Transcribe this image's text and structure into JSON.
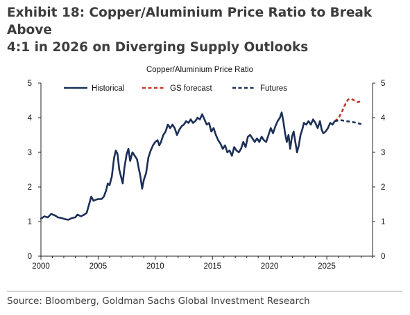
{
  "exhibit": {
    "title_line1": "Exhibit 18: Copper/Aluminium Price Ratio to Break Above",
    "title_line2": "4:1 in 2026 on Diverging Supply Outlooks",
    "source": "Source: Bloomberg, Goldman Sachs Global Investment Research"
  },
  "chart_data": {
    "type": "line",
    "title": "Copper/Aluminium Price Ratio",
    "xlim": [
      2000,
      2029
    ],
    "ylim": [
      0,
      5
    ],
    "xticks": [
      2000,
      2005,
      2010,
      2015,
      2020,
      2025
    ],
    "yticks": [
      0,
      1,
      2,
      3,
      4,
      5
    ],
    "legend_position": "top",
    "grid": false,
    "series": [
      {
        "name": "Historical",
        "color": "#1b2f57",
        "style": "solid",
        "points": [
          [
            2000.0,
            1.08
          ],
          [
            2000.3,
            1.15
          ],
          [
            2000.6,
            1.12
          ],
          [
            2000.9,
            1.22
          ],
          [
            2001.2,
            1.18
          ],
          [
            2001.5,
            1.12
          ],
          [
            2001.8,
            1.1
          ],
          [
            2002.1,
            1.07
          ],
          [
            2002.4,
            1.05
          ],
          [
            2002.7,
            1.1
          ],
          [
            2003.0,
            1.12
          ],
          [
            2003.2,
            1.2
          ],
          [
            2003.5,
            1.15
          ],
          [
            2003.8,
            1.2
          ],
          [
            2004.0,
            1.25
          ],
          [
            2004.2,
            1.48
          ],
          [
            2004.4,
            1.72
          ],
          [
            2004.6,
            1.6
          ],
          [
            2004.8,
            1.63
          ],
          [
            2005.0,
            1.65
          ],
          [
            2005.3,
            1.65
          ],
          [
            2005.5,
            1.72
          ],
          [
            2005.7,
            1.9
          ],
          [
            2005.85,
            2.1
          ],
          [
            2006.0,
            2.05
          ],
          [
            2006.2,
            2.3
          ],
          [
            2006.4,
            2.85
          ],
          [
            2006.55,
            3.05
          ],
          [
            2006.7,
            2.95
          ],
          [
            2006.85,
            2.5
          ],
          [
            2007.0,
            2.3
          ],
          [
            2007.15,
            2.1
          ],
          [
            2007.3,
            2.55
          ],
          [
            2007.5,
            2.95
          ],
          [
            2007.65,
            3.1
          ],
          [
            2007.8,
            2.75
          ],
          [
            2008.0,
            3.0
          ],
          [
            2008.2,
            2.9
          ],
          [
            2008.4,
            2.8
          ],
          [
            2008.55,
            2.55
          ],
          [
            2008.7,
            2.3
          ],
          [
            2008.85,
            1.95
          ],
          [
            2009.0,
            2.2
          ],
          [
            2009.2,
            2.4
          ],
          [
            2009.4,
            2.85
          ],
          [
            2009.6,
            3.05
          ],
          [
            2009.8,
            3.2
          ],
          [
            2010.0,
            3.3
          ],
          [
            2010.2,
            3.35
          ],
          [
            2010.35,
            3.2
          ],
          [
            2010.5,
            3.3
          ],
          [
            2010.7,
            3.5
          ],
          [
            2010.9,
            3.6
          ],
          [
            2011.1,
            3.8
          ],
          [
            2011.3,
            3.7
          ],
          [
            2011.5,
            3.8
          ],
          [
            2011.7,
            3.7
          ],
          [
            2011.9,
            3.5
          ],
          [
            2012.1,
            3.65
          ],
          [
            2012.3,
            3.75
          ],
          [
            2012.5,
            3.8
          ],
          [
            2012.7,
            3.9
          ],
          [
            2012.9,
            3.85
          ],
          [
            2013.1,
            3.95
          ],
          [
            2013.3,
            3.85
          ],
          [
            2013.5,
            3.9
          ],
          [
            2013.7,
            4.0
          ],
          [
            2013.9,
            3.95
          ],
          [
            2014.1,
            4.1
          ],
          [
            2014.3,
            3.95
          ],
          [
            2014.5,
            3.8
          ],
          [
            2014.7,
            3.85
          ],
          [
            2014.9,
            3.6
          ],
          [
            2015.1,
            3.7
          ],
          [
            2015.3,
            3.5
          ],
          [
            2015.5,
            3.35
          ],
          [
            2015.7,
            3.25
          ],
          [
            2015.9,
            3.1
          ],
          [
            2016.1,
            3.2
          ],
          [
            2016.3,
            3.0
          ],
          [
            2016.5,
            3.05
          ],
          [
            2016.7,
            2.9
          ],
          [
            2016.9,
            3.15
          ],
          [
            2017.1,
            3.05
          ],
          [
            2017.3,
            3.0
          ],
          [
            2017.5,
            3.1
          ],
          [
            2017.7,
            3.3
          ],
          [
            2017.9,
            3.15
          ],
          [
            2018.1,
            3.45
          ],
          [
            2018.3,
            3.5
          ],
          [
            2018.5,
            3.4
          ],
          [
            2018.7,
            3.3
          ],
          [
            2018.9,
            3.4
          ],
          [
            2019.1,
            3.3
          ],
          [
            2019.3,
            3.45
          ],
          [
            2019.5,
            3.35
          ],
          [
            2019.7,
            3.3
          ],
          [
            2019.9,
            3.5
          ],
          [
            2020.1,
            3.7
          ],
          [
            2020.3,
            3.55
          ],
          [
            2020.5,
            3.75
          ],
          [
            2020.7,
            3.9
          ],
          [
            2020.9,
            4.0
          ],
          [
            2021.05,
            4.15
          ],
          [
            2021.2,
            3.9
          ],
          [
            2021.35,
            3.55
          ],
          [
            2021.5,
            3.3
          ],
          [
            2021.65,
            3.5
          ],
          [
            2021.8,
            3.1
          ],
          [
            2021.95,
            3.45
          ],
          [
            2022.1,
            3.6
          ],
          [
            2022.25,
            3.3
          ],
          [
            2022.4,
            3.0
          ],
          [
            2022.55,
            3.2
          ],
          [
            2022.7,
            3.5
          ],
          [
            2022.85,
            3.65
          ],
          [
            2023.0,
            3.85
          ],
          [
            2023.2,
            3.8
          ],
          [
            2023.4,
            3.9
          ],
          [
            2023.6,
            3.8
          ],
          [
            2023.8,
            3.95
          ],
          [
            2024.0,
            3.85
          ],
          [
            2024.2,
            3.7
          ],
          [
            2024.4,
            3.9
          ],
          [
            2024.55,
            3.65
          ],
          [
            2024.7,
            3.55
          ],
          [
            2024.9,
            3.6
          ],
          [
            2025.1,
            3.7
          ],
          [
            2025.3,
            3.85
          ],
          [
            2025.5,
            3.8
          ],
          [
            2025.7,
            3.9
          ]
        ]
      },
      {
        "name": "GS forecast",
        "color": "#c0392b",
        "style": "dashed",
        "points": [
          [
            2025.7,
            3.9
          ],
          [
            2026.0,
            3.98
          ],
          [
            2026.3,
            4.15
          ],
          [
            2026.6,
            4.38
          ],
          [
            2026.85,
            4.52
          ],
          [
            2027.1,
            4.55
          ],
          [
            2027.4,
            4.5
          ],
          [
            2027.7,
            4.45
          ],
          [
            2028.0,
            4.47
          ]
        ]
      },
      {
        "name": "Futures",
        "color": "#1b2f57",
        "style": "dashed",
        "points": [
          [
            2025.7,
            3.9
          ],
          [
            2026.2,
            3.93
          ],
          [
            2026.7,
            3.9
          ],
          [
            2027.2,
            3.88
          ],
          [
            2027.7,
            3.84
          ],
          [
            2028.2,
            3.8
          ]
        ]
      }
    ]
  }
}
